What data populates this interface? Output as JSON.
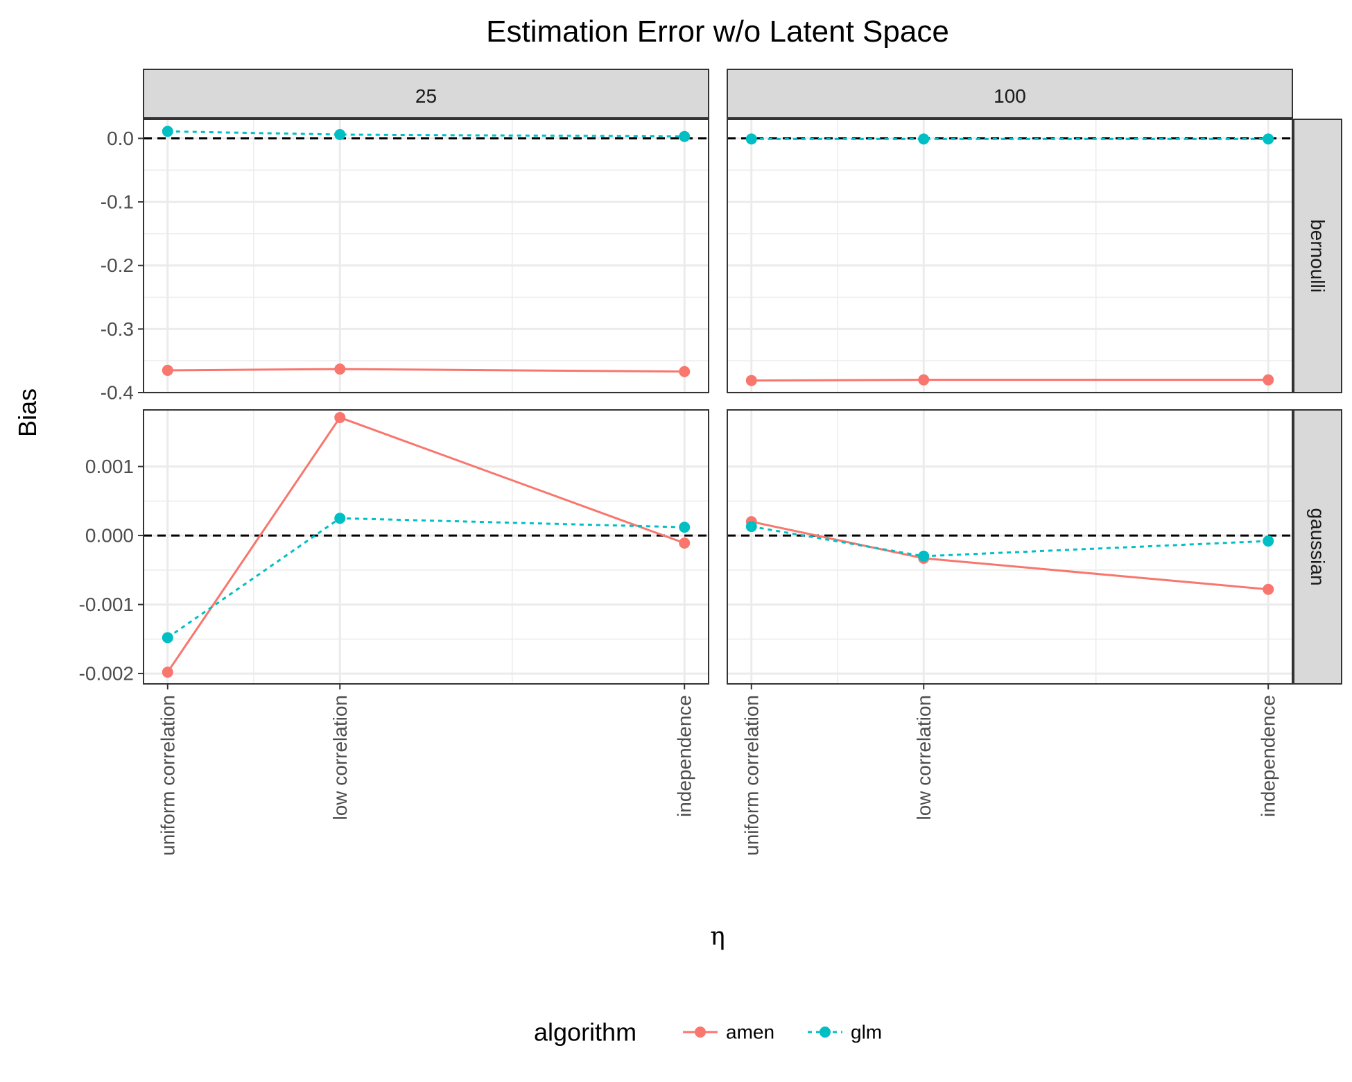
{
  "title": "Estimation Error w/o Latent Space",
  "xlabel": "η",
  "ylabel": "Bias",
  "legend": {
    "title": "algorithm",
    "items": [
      {
        "name": "amen",
        "color": "#F8766D",
        "linestyle": "solid"
      },
      {
        "name": "glm",
        "color": "#00BFC4",
        "linestyle": "dashed"
      }
    ]
  },
  "chart_data": {
    "type": "line",
    "facets": {
      "columns": [
        "25",
        "100"
      ],
      "rows": [
        "bernoulli",
        "gaussian"
      ]
    },
    "categories": [
      "uniform correlation",
      "low correlation",
      "independence"
    ],
    "x_positions": [
      1,
      2,
      4
    ],
    "reference_line": 0,
    "grid": true,
    "legend_position": "bottom",
    "panels": [
      {
        "column": "25",
        "row": "bernoulli",
        "ylim": [
          -0.4,
          0.03
        ],
        "yticks": [
          0.0,
          -0.1,
          -0.2,
          -0.3,
          -0.4
        ],
        "ytick_labels": [
          "0.0",
          "-0.1",
          "-0.2",
          "-0.3",
          "-0.4"
        ],
        "series": [
          {
            "name": "amen",
            "values": [
              -0.365,
              -0.363,
              -0.367
            ]
          },
          {
            "name": "glm",
            "values": [
              0.011,
              0.006,
              0.003
            ]
          }
        ]
      },
      {
        "column": "100",
        "row": "bernoulli",
        "ylim": [
          -0.4,
          0.03
        ],
        "series": [
          {
            "name": "amen",
            "values": [
              -0.381,
              -0.38,
              -0.38
            ]
          },
          {
            "name": "glm",
            "values": [
              -0.001,
              -0.001,
              -0.001
            ]
          }
        ]
      },
      {
        "column": "25",
        "row": "gaussian",
        "ylim": [
          -0.00215,
          0.00182
        ],
        "yticks": [
          0.001,
          0.0,
          -0.001,
          -0.002
        ],
        "ytick_labels": [
          "0.001",
          "0.000",
          "-0.001",
          "-0.002"
        ],
        "series": [
          {
            "name": "amen",
            "values": [
              -0.00198,
              0.00171,
              -0.00011
            ]
          },
          {
            "name": "glm",
            "values": [
              -0.00148,
              0.00025,
              0.00012
            ]
          }
        ]
      },
      {
        "column": "100",
        "row": "gaussian",
        "ylim": [
          -0.00215,
          0.00182
        ],
        "series": [
          {
            "name": "amen",
            "values": [
              0.0002,
              -0.00033,
              -0.00078
            ]
          },
          {
            "name": "glm",
            "values": [
              0.00013,
              -0.0003,
              -8e-05
            ]
          }
        ]
      }
    ]
  }
}
